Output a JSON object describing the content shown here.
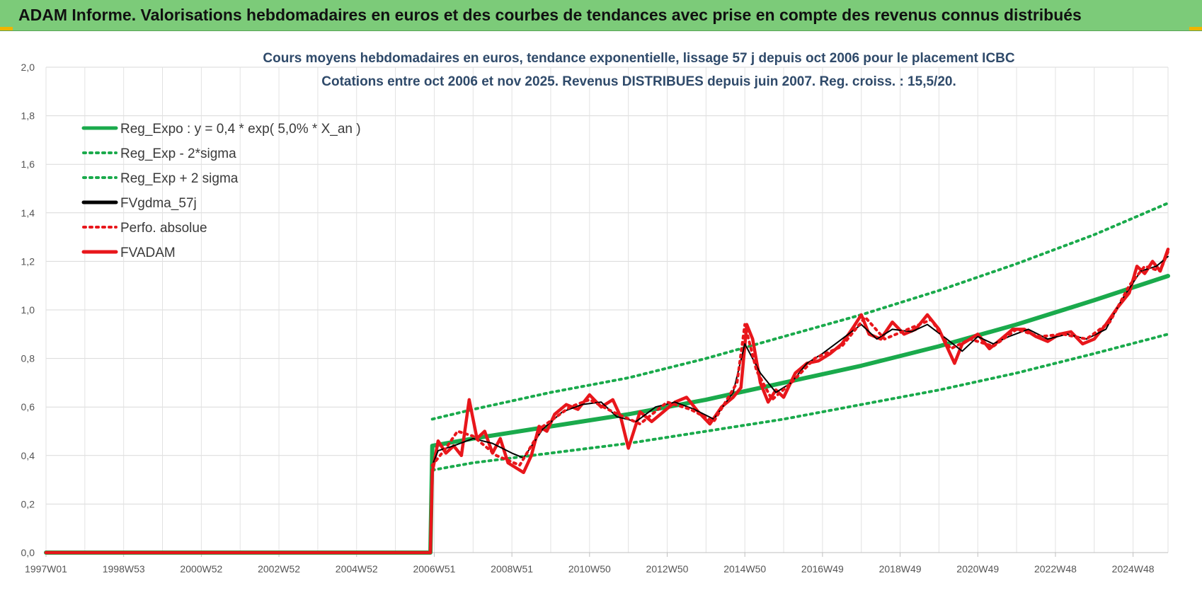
{
  "header": {
    "title": "ADAM Informe. Valorisations hebdomadaires en euros et des courbes de tendances avec prise en compte des revenus connus distribués"
  },
  "chart_data": {
    "type": "line",
    "title_lines": [
      "Cours moyens hebdomadaires en euros, tendance exponentielle, lissage 57 j depuis oct 2006 pour le placement ICBC",
      "Cotations entre oct 2006 et nov 2025. Revenus DISTRIBUES depuis juin 2007. Reg. croiss. : 15,5/20."
    ],
    "ylim": [
      0,
      2.0
    ],
    "y_ticks": [
      "0,0",
      "0,2",
      "0,4",
      "0,6",
      "0,8",
      "1,0",
      "1,2",
      "1,4",
      "1,6",
      "1,8",
      "2,0"
    ],
    "x_range": [
      1997.0,
      2025.9
    ],
    "x_ticks": [
      {
        "label": "1997W01",
        "t": 1997.0
      },
      {
        "label": "1998W53",
        "t": 1999.0
      },
      {
        "label": "2000W52",
        "t": 2001.0
      },
      {
        "label": "2002W52",
        "t": 2003.0
      },
      {
        "label": "2004W52",
        "t": 2005.0
      },
      {
        "label": "2006W51",
        "t": 2007.0
      },
      {
        "label": "2008W51",
        "t": 2009.0
      },
      {
        "label": "2010W50",
        "t": 2011.0
      },
      {
        "label": "2012W50",
        "t": 2013.0
      },
      {
        "label": "2014W50",
        "t": 2015.0
      },
      {
        "label": "2016W49",
        "t": 2017.0
      },
      {
        "label": "2018W49",
        "t": 2019.0
      },
      {
        "label": "2020W49",
        "t": 2021.0
      },
      {
        "label": "2022W48",
        "t": 2023.0
      },
      {
        "label": "2024W48",
        "t": 2025.0
      }
    ],
    "grid": true,
    "legend_position": "top-left",
    "series": [
      {
        "name": "Reg_Expo : y = 0,4 * exp( 5,0% *  X_an )",
        "color": "#1aaa4c",
        "style": "solid",
        "x": [
          1997.0,
          2006.9,
          2006.95,
          2008,
          2010,
          2012,
          2014,
          2016,
          2018,
          2020,
          2022,
          2024,
          2025.9
        ],
        "y": [
          0,
          0,
          0.44,
          0.47,
          0.52,
          0.57,
          0.63,
          0.7,
          0.77,
          0.85,
          0.94,
          1.04,
          1.14
        ]
      },
      {
        "name": "Reg_Exp - 2*sigma",
        "color": "#1aaa4c",
        "style": "dotted",
        "x": [
          2006.95,
          2008,
          2010,
          2012,
          2014,
          2016,
          2018,
          2020,
          2022,
          2024,
          2025.9
        ],
        "y": [
          0.34,
          0.37,
          0.41,
          0.45,
          0.5,
          0.55,
          0.61,
          0.67,
          0.74,
          0.82,
          0.9
        ]
      },
      {
        "name": "Reg_Exp + 2 sigma",
        "color": "#1aaa4c",
        "style": "dotted",
        "x": [
          2006.95,
          2008,
          2010,
          2012,
          2014,
          2016,
          2018,
          2020,
          2022,
          2024,
          2025.9
        ],
        "y": [
          0.55,
          0.59,
          0.66,
          0.72,
          0.8,
          0.89,
          0.98,
          1.08,
          1.19,
          1.31,
          1.44
        ]
      },
      {
        "name": "FVgdma_57j",
        "color": "#000000",
        "style": "solid",
        "x": [
          2006.95,
          2007.1,
          2007.5,
          2008.0,
          2008.5,
          2009.0,
          2009.3,
          2009.8,
          2010.3,
          2010.8,
          2011.3,
          2011.7,
          2012.2,
          2012.7,
          2013.2,
          2013.7,
          2014.2,
          2014.7,
          2015.0,
          2015.4,
          2015.8,
          2016.2,
          2016.6,
          2017.0,
          2017.5,
          2018.0,
          2018.4,
          2018.8,
          2019.3,
          2019.7,
          2020.2,
          2020.6,
          2021.0,
          2021.4,
          2021.8,
          2022.3,
          2022.8,
          2023.3,
          2023.8,
          2024.3,
          2024.7,
          2025.2,
          2025.6,
          2025.9
        ],
        "y": [
          0.36,
          0.42,
          0.44,
          0.47,
          0.45,
          0.41,
          0.39,
          0.51,
          0.58,
          0.61,
          0.62,
          0.56,
          0.54,
          0.6,
          0.62,
          0.59,
          0.55,
          0.66,
          0.86,
          0.74,
          0.66,
          0.7,
          0.78,
          0.82,
          0.88,
          0.94,
          0.88,
          0.92,
          0.91,
          0.94,
          0.88,
          0.83,
          0.89,
          0.86,
          0.89,
          0.92,
          0.88,
          0.9,
          0.88,
          0.92,
          1.04,
          1.16,
          1.18,
          1.22
        ]
      },
      {
        "name": "Perfo. absolue",
        "color": "#e8161b",
        "style": "dotted",
        "x": [
          1997.0,
          2006.9,
          2006.95,
          2007.3,
          2007.6,
          2008.0,
          2008.6,
          2009.2,
          2009.8,
          2010.5,
          2011.0,
          2011.6,
          2012.3,
          2013.0,
          2013.6,
          2014.2,
          2014.8,
          2015.0,
          2015.3,
          2015.7,
          2016.2,
          2016.8,
          2017.5,
          2018.1,
          2018.6,
          2019.2,
          2019.8,
          2020.3,
          2020.8,
          2021.4,
          2022.0,
          2022.6,
          2023.2,
          2023.8,
          2024.4,
          2024.9,
          2025.3,
          2025.7,
          2025.9
        ],
        "y": [
          0,
          0,
          0.36,
          0.43,
          0.5,
          0.48,
          0.4,
          0.36,
          0.52,
          0.6,
          0.63,
          0.58,
          0.53,
          0.62,
          0.59,
          0.54,
          0.7,
          0.94,
          0.75,
          0.63,
          0.7,
          0.8,
          0.85,
          0.97,
          0.88,
          0.92,
          0.96,
          0.84,
          0.88,
          0.85,
          0.92,
          0.89,
          0.9,
          0.88,
          0.95,
          1.1,
          1.18,
          1.16,
          1.24
        ]
      },
      {
        "name": "FVADAM",
        "color": "#e8161b",
        "style": "solid",
        "x": [
          1997.0,
          2006.9,
          2006.95,
          2007.1,
          2007.3,
          2007.5,
          2007.7,
          2007.9,
          2008.1,
          2008.3,
          2008.5,
          2008.7,
          2008.9,
          2009.1,
          2009.3,
          2009.5,
          2009.7,
          2009.9,
          2010.1,
          2010.4,
          2010.7,
          2011.0,
          2011.3,
          2011.6,
          2011.8,
          2012.0,
          2012.3,
          2012.6,
          2012.9,
          2013.2,
          2013.5,
          2013.8,
          2014.1,
          2014.4,
          2014.7,
          2014.9,
          2015.05,
          2015.2,
          2015.4,
          2015.6,
          2015.8,
          2016.0,
          2016.3,
          2016.6,
          2016.9,
          2017.2,
          2017.5,
          2017.8,
          2018.0,
          2018.2,
          2018.5,
          2018.8,
          2019.1,
          2019.4,
          2019.7,
          2020.0,
          2020.2,
          2020.4,
          2020.6,
          2020.8,
          2021.0,
          2021.3,
          2021.6,
          2021.9,
          2022.2,
          2022.5,
          2022.8,
          2023.1,
          2023.4,
          2023.7,
          2024.0,
          2024.3,
          2024.6,
          2024.9,
          2025.1,
          2025.3,
          2025.5,
          2025.7,
          2025.9
        ],
        "y": [
          0,
          0,
          0.33,
          0.46,
          0.41,
          0.44,
          0.4,
          0.63,
          0.47,
          0.5,
          0.41,
          0.47,
          0.37,
          0.35,
          0.33,
          0.4,
          0.52,
          0.5,
          0.57,
          0.61,
          0.59,
          0.65,
          0.6,
          0.63,
          0.56,
          0.43,
          0.58,
          0.54,
          0.58,
          0.62,
          0.64,
          0.58,
          0.53,
          0.6,
          0.64,
          0.68,
          0.94,
          0.88,
          0.7,
          0.62,
          0.67,
          0.64,
          0.74,
          0.78,
          0.79,
          0.82,
          0.86,
          0.93,
          0.98,
          0.9,
          0.88,
          0.95,
          0.9,
          0.92,
          0.98,
          0.92,
          0.85,
          0.78,
          0.86,
          0.88,
          0.9,
          0.84,
          0.88,
          0.92,
          0.92,
          0.89,
          0.87,
          0.9,
          0.91,
          0.86,
          0.88,
          0.94,
          1.01,
          1.07,
          1.18,
          1.15,
          1.2,
          1.16,
          1.25
        ]
      }
    ]
  }
}
